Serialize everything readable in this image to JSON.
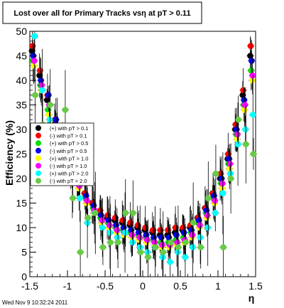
{
  "chart_data": {
    "type": "scatter",
    "title": "Lost over all for Primary Tracks vsη at pT > 0.11",
    "xlabel": "η",
    "ylabel": "Efficiency (%)",
    "xlim": [
      -1.5,
      1.5
    ],
    "ylim": [
      0,
      50
    ],
    "x_ticks": [
      "-1.5",
      "-1",
      "-0.5",
      "0",
      "0.5",
      "1",
      "1.5"
    ],
    "y_ticks": [
      "0",
      "5",
      "10",
      "15",
      "20",
      "25",
      "30",
      "35",
      "40",
      "45",
      "50"
    ],
    "grid": false,
    "legend_position": "left",
    "timestamp": "Wed Nov  9 10:32:24 2011",
    "series": [
      {
        "name": "(+) with pT > 0.1",
        "color": "#000000",
        "x": [
          -1.45,
          -1.35,
          -1.25,
          -1.15,
          -1.05,
          -0.95,
          -0.85,
          -0.75,
          -0.65,
          -0.55,
          -0.45,
          -0.35,
          -0.25,
          -0.15,
          -0.05,
          0.05,
          0.15,
          0.25,
          0.35,
          0.45,
          0.55,
          0.65,
          0.75,
          0.85,
          0.95,
          1.05,
          1.15,
          1.25,
          1.35,
          1.45
        ],
        "y": [
          46,
          41,
          36,
          31,
          27,
          23,
          20,
          17,
          15,
          13,
          12,
          11.5,
          11,
          10.5,
          10,
          9.5,
          9,
          8.5,
          8.5,
          9,
          9.5,
          10,
          12,
          14,
          17,
          20,
          24,
          30,
          37,
          45
        ]
      },
      {
        "name": "(-) with pT > 0.1",
        "color": "#ff0000",
        "x": [
          -1.45,
          -1.35,
          -1.25,
          -1.15,
          -1.05,
          -0.95,
          -0.85,
          -0.75,
          -0.65,
          -0.55,
          -0.45,
          -0.35,
          -0.25,
          -0.15,
          -0.05,
          0.05,
          0.15,
          0.25,
          0.35,
          0.45,
          0.55,
          0.65,
          0.75,
          0.85,
          0.95,
          1.05,
          1.15,
          1.25,
          1.35,
          1.45
        ],
        "y": [
          47,
          42,
          37,
          32,
          27,
          23,
          20,
          17,
          15,
          13.5,
          12.5,
          12,
          11.5,
          11,
          10.5,
          10,
          9.5,
          9.5,
          9.5,
          10,
          10,
          10.5,
          12,
          14,
          17,
          21,
          25,
          31,
          38,
          47
        ]
      },
      {
        "name": "(+) with pT > 0.5",
        "color": "#00dd00",
        "x": [
          -1.45,
          -1.35,
          -1.25,
          -1.15,
          -1.05,
          -0.95,
          -0.85,
          -0.75,
          -0.65,
          -0.55,
          -0.45,
          -0.35,
          -0.25,
          -0.15,
          -0.05,
          0.05,
          0.15,
          0.25,
          0.35,
          0.45,
          0.55,
          0.65,
          0.75,
          0.85,
          0.95,
          1.05,
          1.15,
          1.25,
          1.35,
          1.45
        ],
        "y": [
          44,
          39,
          34,
          30,
          26,
          22,
          19,
          16,
          14,
          12,
          11,
          10,
          9.5,
          9,
          8.5,
          8,
          7.5,
          7,
          7,
          7.5,
          8,
          9,
          11,
          13,
          16,
          19,
          23,
          29,
          35,
          42
        ]
      },
      {
        "name": "(-) with pT > 0.5",
        "color": "#0000ee",
        "x": [
          -1.45,
          -1.35,
          -1.25,
          -1.15,
          -1.05,
          -0.95,
          -0.85,
          -0.75,
          -0.65,
          -0.55,
          -0.45,
          -0.35,
          -0.25,
          -0.15,
          -0.05,
          0.05,
          0.15,
          0.25,
          0.35,
          0.45,
          0.55,
          0.65,
          0.75,
          0.85,
          0.95,
          1.05,
          1.15,
          1.25,
          1.35,
          1.45
        ],
        "y": [
          45,
          40,
          37,
          32,
          27,
          23,
          19.5,
          16.5,
          14.5,
          12.5,
          11.5,
          10.5,
          10,
          9.5,
          9,
          8.5,
          8,
          8,
          8,
          8.5,
          9,
          9.5,
          11.5,
          13.5,
          16.5,
          20,
          24,
          30,
          36,
          44
        ]
      },
      {
        "name": "(+) with pT > 1.0",
        "color": "#ffff00",
        "x": [
          -1.45,
          -1.35,
          -1.25,
          -1.15,
          -1.05,
          -0.95,
          -0.85,
          -0.75,
          -0.65,
          -0.55,
          -0.45,
          -0.35,
          -0.25,
          -0.15,
          -0.05,
          0.05,
          0.15,
          0.25,
          0.35,
          0.45,
          0.55,
          0.65,
          0.75,
          0.85,
          0.95,
          1.05,
          1.15,
          1.25,
          1.35,
          1.45
        ],
        "y": [
          43,
          38,
          33,
          29,
          25,
          21,
          18,
          15,
          13,
          11,
          10,
          9,
          8.5,
          8,
          7.5,
          7,
          6.5,
          6,
          6,
          6.5,
          7,
          8,
          10,
          12,
          15,
          18,
          22,
          28,
          34,
          40
        ]
      },
      {
        "name": "(-) with pT > 1.0",
        "color": "#ff00ff",
        "x": [
          -1.45,
          -1.35,
          -1.25,
          -1.15,
          -1.05,
          -0.95,
          -0.85,
          -0.75,
          -0.65,
          -0.55,
          -0.45,
          -0.35,
          -0.25,
          -0.15,
          -0.05,
          0.05,
          0.15,
          0.25,
          0.35,
          0.45,
          0.55,
          0.65,
          0.75,
          0.85,
          0.95,
          1.05,
          1.15,
          1.25,
          1.35,
          1.45
        ],
        "y": [
          44,
          39,
          35,
          30,
          26,
          22,
          18.5,
          15.5,
          13.5,
          11.5,
          10.5,
          9.5,
          9,
          8.5,
          8,
          7.5,
          7,
          6.5,
          6.5,
          7,
          7.5,
          8.5,
          10.5,
          12.5,
          15.5,
          19,
          23,
          29,
          35,
          41
        ]
      },
      {
        "name": "(+) with pT > 2.0",
        "color": "#00ffff",
        "x": [
          -1.45,
          -1.35,
          -1.25,
          -1.15,
          -1.05,
          -0.95,
          -0.85,
          -0.75,
          -0.65,
          -0.55,
          -0.45,
          -0.35,
          -0.25,
          -0.15,
          -0.05,
          0.05,
          0.15,
          0.25,
          0.35,
          0.45,
          0.55,
          0.65,
          0.75,
          0.85,
          0.95,
          1.05,
          1.15,
          1.25,
          1.35,
          1.45
        ],
        "y": [
          49,
          38,
          32,
          28,
          24,
          20,
          16,
          11,
          13,
          10,
          9,
          8,
          9,
          7,
          6,
          5,
          6,
          4,
          3,
          5,
          4,
          6,
          8,
          10,
          13,
          17,
          21,
          27,
          30,
          33
        ]
      },
      {
        "name": "(-) with pT > 2.0",
        "color": "#66cc44",
        "x": [
          -1.45,
          -1.35,
          -1.25,
          -1.15,
          -1.05,
          -0.95,
          -0.85,
          -0.75,
          -0.65,
          -0.55,
          -0.45,
          -0.35,
          -0.25,
          -0.15,
          -0.05,
          0.05,
          0.15,
          0.25,
          0.35,
          0.45,
          0.55,
          0.65,
          0.75,
          0.85,
          0.95,
          1.05,
          1.15,
          1.25,
          1.35,
          1.45
        ],
        "y": [
          37,
          31,
          35,
          28,
          34,
          16,
          5,
          12,
          13,
          6,
          7,
          7,
          13,
          13,
          5,
          4,
          6,
          5,
          7,
          6,
          7,
          11,
          6,
          16,
          21,
          6,
          20,
          32,
          27,
          25
        ]
      }
    ]
  }
}
